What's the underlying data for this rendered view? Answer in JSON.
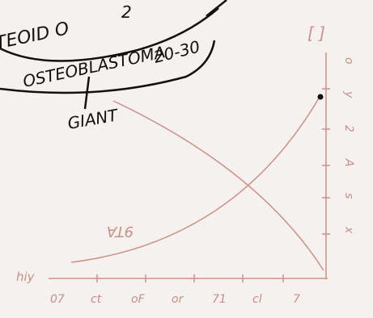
{
  "notes": {
    "top_fragment": "TEOID O",
    "top_number": "2",
    "tumor_name": "OSTEOBLASTOMA",
    "age_range": "20-30",
    "second_name": "GIANT"
  },
  "sketch": {
    "curve_label": "9TA",
    "y_axis_label": "hiy",
    "x_tick_labels": [
      "07",
      "ct",
      "oF",
      "or",
      "71",
      "cl",
      "7"
    ],
    "y_tick_labels": [
      "o",
      "y",
      "2",
      "A",
      "s",
      "x"
    ],
    "corner_mark": "[ ]"
  }
}
